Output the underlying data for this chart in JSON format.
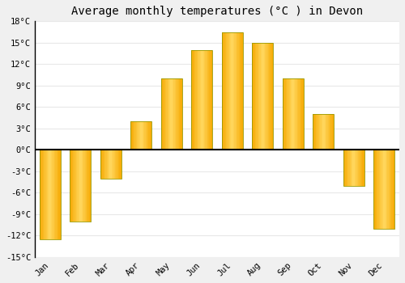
{
  "months": [
    "Jan",
    "Feb",
    "Mar",
    "Apr",
    "May",
    "Jun",
    "Jul",
    "Aug",
    "Sep",
    "Oct",
    "Nov",
    "Dec"
  ],
  "values": [
    -12.5,
    -10.0,
    -4.0,
    4.0,
    10.0,
    14.0,
    16.5,
    15.0,
    10.0,
    5.0,
    -5.0,
    -11.0
  ],
  "bar_color_outer": "#F5A800",
  "bar_color_inner": "#FFD860",
  "bar_edge_color": "#999900",
  "title": "Average monthly temperatures (°C ) in Devon",
  "ylim": [
    -15,
    18
  ],
  "yticks": [
    -15,
    -12,
    -9,
    -6,
    -3,
    0,
    3,
    6,
    9,
    12,
    15,
    18
  ],
  "ytick_labels": [
    "-15°C",
    "-12°C",
    "-9°C",
    "-6°C",
    "-3°C",
    "0°C",
    "3°C",
    "6°C",
    "9°C",
    "12°C",
    "15°C",
    "18°C"
  ],
  "plot_bg_color": "#ffffff",
  "fig_bg_color": "#f0f0f0",
  "grid_color": "#e8e8e8",
  "title_fontsize": 10,
  "tick_fontsize": 7.5,
  "bar_width": 0.7
}
